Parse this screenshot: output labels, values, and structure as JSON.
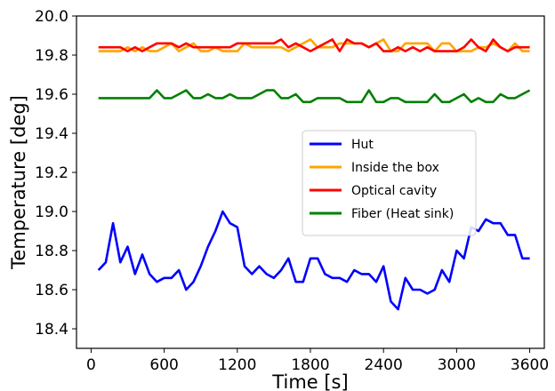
{
  "chart_data": {
    "type": "line",
    "title": "",
    "xlabel": "Time [s]",
    "ylabel": "Temperature [deg]",
    "xlim": [
      -120,
      3720
    ],
    "ylim": [
      18.3,
      20.0
    ],
    "xticks": [
      0,
      600,
      1200,
      1800,
      2400,
      3000,
      3600
    ],
    "yticks": [
      18.4,
      18.6,
      18.8,
      19.0,
      19.2,
      19.4,
      19.6,
      19.8,
      20.0
    ],
    "xtick_labels": [
      "0",
      "600",
      "1200",
      "1800",
      "2400",
      "3000",
      "3600"
    ],
    "ytick_labels": [
      "18.4",
      "18.6",
      "18.8",
      "19.0",
      "19.2",
      "19.4",
      "19.6",
      "19.8",
      "20.0"
    ],
    "grid": false,
    "legend_position": "center-right",
    "x": [
      60,
      120,
      180,
      240,
      300,
      360,
      420,
      480,
      540,
      600,
      660,
      720,
      780,
      840,
      900,
      960,
      1020,
      1080,
      1140,
      1200,
      1260,
      1320,
      1380,
      1440,
      1500,
      1560,
      1620,
      1680,
      1740,
      1800,
      1860,
      1920,
      1980,
      2040,
      2100,
      2160,
      2220,
      2280,
      2340,
      2400,
      2460,
      2520,
      2580,
      2640,
      2700,
      2760,
      2820,
      2880,
      2940,
      3000,
      3060,
      3120,
      3180,
      3240,
      3300,
      3360,
      3420,
      3480,
      3540,
      3600
    ],
    "series": [
      {
        "name": "Hut",
        "color": "#0000ff",
        "values": [
          18.7,
          18.74,
          18.94,
          18.74,
          18.82,
          18.68,
          18.78,
          18.68,
          18.64,
          18.66,
          18.66,
          18.7,
          18.6,
          18.64,
          18.72,
          18.82,
          18.9,
          19.0,
          18.94,
          18.92,
          18.72,
          18.68,
          18.72,
          18.68,
          18.66,
          18.7,
          18.76,
          18.64,
          18.64,
          18.76,
          18.76,
          18.68,
          18.66,
          18.66,
          18.64,
          18.7,
          18.68,
          18.68,
          18.64,
          18.72,
          18.54,
          18.5,
          18.66,
          18.6,
          18.6,
          18.58,
          18.6,
          18.7,
          18.64,
          18.8,
          18.76,
          18.92,
          18.9,
          18.96,
          18.94,
          18.94,
          18.88,
          18.88,
          18.76,
          18.76
        ]
      },
      {
        "name": "Inside the box",
        "color": "#ffa500",
        "values": [
          19.82,
          19.82,
          19.82,
          19.82,
          19.84,
          19.82,
          19.84,
          19.82,
          19.82,
          19.84,
          19.86,
          19.82,
          19.84,
          19.86,
          19.82,
          19.82,
          19.84,
          19.82,
          19.82,
          19.82,
          19.86,
          19.84,
          19.84,
          19.84,
          19.84,
          19.84,
          19.82,
          19.84,
          19.86,
          19.88,
          19.84,
          19.84,
          19.84,
          19.86,
          19.86,
          19.86,
          19.86,
          19.84,
          19.86,
          19.88,
          19.82,
          19.82,
          19.86,
          19.86,
          19.86,
          19.86,
          19.82,
          19.86,
          19.86,
          19.82,
          19.82,
          19.82,
          19.84,
          19.84,
          19.86,
          19.84,
          19.82,
          19.86,
          19.82,
          19.82
        ]
      },
      {
        "name": "Optical cavity",
        "color": "#ff0000",
        "values": [
          19.84,
          19.84,
          19.84,
          19.84,
          19.82,
          19.84,
          19.82,
          19.84,
          19.86,
          19.86,
          19.86,
          19.84,
          19.86,
          19.84,
          19.84,
          19.84,
          19.84,
          19.84,
          19.84,
          19.86,
          19.86,
          19.86,
          19.86,
          19.86,
          19.86,
          19.88,
          19.84,
          19.86,
          19.84,
          19.82,
          19.84,
          19.86,
          19.88,
          19.82,
          19.88,
          19.86,
          19.86,
          19.84,
          19.86,
          19.82,
          19.82,
          19.84,
          19.82,
          19.84,
          19.82,
          19.84,
          19.82,
          19.82,
          19.82,
          19.82,
          19.84,
          19.88,
          19.84,
          19.82,
          19.88,
          19.84,
          19.82,
          19.84,
          19.84,
          19.84
        ]
      },
      {
        "name": "Fiber (Heat sink)",
        "color": "#008000",
        "values": [
          19.58,
          19.58,
          19.58,
          19.58,
          19.58,
          19.58,
          19.58,
          19.58,
          19.62,
          19.58,
          19.58,
          19.6,
          19.62,
          19.58,
          19.58,
          19.6,
          19.58,
          19.58,
          19.6,
          19.58,
          19.58,
          19.58,
          19.6,
          19.62,
          19.62,
          19.58,
          19.58,
          19.6,
          19.56,
          19.56,
          19.58,
          19.58,
          19.58,
          19.58,
          19.56,
          19.56,
          19.56,
          19.62,
          19.56,
          19.56,
          19.58,
          19.58,
          19.56,
          19.56,
          19.56,
          19.56,
          19.6,
          19.56,
          19.56,
          19.58,
          19.6,
          19.56,
          19.58,
          19.56,
          19.56,
          19.6,
          19.58,
          19.58,
          19.6,
          19.62
        ]
      }
    ]
  }
}
